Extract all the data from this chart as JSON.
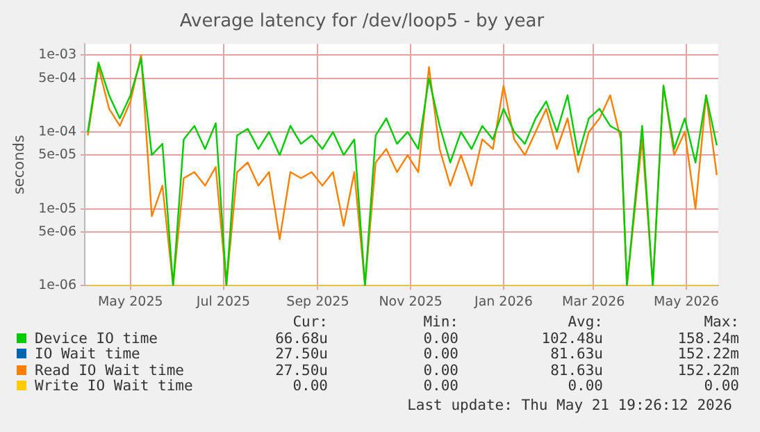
{
  "chart_data": {
    "type": "line",
    "title": "Average latency for /dev/loop5 - by year",
    "ylabel": "seconds",
    "log": "y",
    "grid": true,
    "legend": "bottom",
    "marker": "none",
    "line_style": "solid",
    "xlim": [
      "2025-04-01",
      "2026-05-22"
    ],
    "xticks": [
      {
        "value": "2025-05-01",
        "label": "May 2025"
      },
      {
        "value": "2025-07-01",
        "label": "Jul 2025"
      },
      {
        "value": "2025-09-01",
        "label": "Sep 2025"
      },
      {
        "value": "2025-11-01",
        "label": "Nov 2025"
      },
      {
        "value": "2026-01-01",
        "label": "Jan 2026"
      },
      {
        "value": "2026-03-01",
        "label": "Mar 2026"
      },
      {
        "value": "2026-05-01",
        "label": "May 2026"
      }
    ],
    "ylim": [
      1e-06,
      0.0014
    ],
    "yticks": [
      {
        "value": 1e-06,
        "label": "1e-06"
      },
      {
        "value": 5e-06,
        "label": "5e-06"
      },
      {
        "value": 1e-05,
        "label": "1e-05"
      },
      {
        "value": 5e-05,
        "label": "5e-05"
      },
      {
        "value": 0.0001,
        "label": "1e-04"
      },
      {
        "value": 0.0005,
        "label": "5e-04"
      },
      {
        "value": 0.001,
        "label": "1e-03"
      }
    ],
    "x": [
      "2025-04-03",
      "2025-04-10",
      "2025-04-17",
      "2025-04-24",
      "2025-05-01",
      "2025-05-08",
      "2025-05-15",
      "2025-05-22",
      "2025-05-29",
      "2025-06-05",
      "2025-06-12",
      "2025-06-19",
      "2025-06-26",
      "2025-07-03",
      "2025-07-10",
      "2025-07-17",
      "2025-07-24",
      "2025-07-31",
      "2025-08-07",
      "2025-08-14",
      "2025-08-21",
      "2025-08-28",
      "2025-09-04",
      "2025-09-11",
      "2025-09-18",
      "2025-09-25",
      "2025-10-02",
      "2025-10-09",
      "2025-10-16",
      "2025-10-23",
      "2025-10-30",
      "2025-11-06",
      "2025-11-13",
      "2025-11-20",
      "2025-11-27",
      "2025-12-04",
      "2025-12-11",
      "2025-12-18",
      "2025-12-25",
      "2026-01-01",
      "2026-01-08",
      "2026-01-15",
      "2026-01-22",
      "2026-01-29",
      "2026-02-05",
      "2026-02-12",
      "2026-02-19",
      "2026-02-26",
      "2026-03-05",
      "2026-03-12",
      "2026-03-19",
      "2026-03-23",
      "2026-04-02",
      "2026-04-09",
      "2026-04-16",
      "2026-04-23",
      "2026-04-30",
      "2026-05-07",
      "2026-05-14",
      "2026-05-21"
    ],
    "series": [
      {
        "name": "Device IO time",
        "color": "#00cc00",
        "values": [
          0.0001,
          0.0008,
          0.0003,
          0.00015,
          0.0003,
          0.0009,
          5e-05,
          7e-05,
          1e-06,
          8e-05,
          0.00012,
          6e-05,
          0.00013,
          1e-06,
          9e-05,
          0.00011,
          6e-05,
          0.0001,
          5e-05,
          0.00012,
          7e-05,
          9e-05,
          6e-05,
          0.0001,
          5e-05,
          8e-05,
          1e-06,
          9e-05,
          0.00015,
          7e-05,
          0.0001,
          6e-05,
          0.0005,
          0.00012,
          4e-05,
          0.0001,
          6e-05,
          0.00012,
          8e-05,
          0.0002,
          0.0001,
          7e-05,
          0.00015,
          0.00025,
          0.0001,
          0.0003,
          5e-05,
          0.00015,
          0.0002,
          0.00012,
          0.0001,
          1e-06,
          0.00012,
          1e-06,
          0.0004,
          6e-05,
          0.00015,
          4e-05,
          0.0003,
          6.7e-05
        ]
      },
      {
        "name": "IO Wait time",
        "color": "#0066b3",
        "values": [
          null,
          null,
          null,
          null,
          null,
          null,
          null,
          null,
          null,
          null,
          null,
          null,
          null,
          null,
          null,
          null,
          null,
          null,
          null,
          null,
          null,
          null,
          null,
          null,
          null,
          null,
          null,
          null,
          null,
          null,
          null,
          null,
          null,
          null,
          null,
          null,
          null,
          null,
          null,
          null,
          null,
          null,
          null,
          null,
          null,
          null,
          null,
          null,
          null,
          null,
          null,
          null,
          null,
          null,
          null,
          null,
          null,
          null,
          null,
          null
        ]
      },
      {
        "name": "Read IO Wait time",
        "color": "#ff8000",
        "values": [
          9e-05,
          0.0007,
          0.0002,
          0.00012,
          0.00025,
          0.001,
          8e-06,
          2e-05,
          1e-06,
          2.5e-05,
          3e-05,
          2e-05,
          3.5e-05,
          1e-06,
          3e-05,
          4e-05,
          2e-05,
          3e-05,
          4e-06,
          3e-05,
          2.5e-05,
          3e-05,
          2e-05,
          3e-05,
          6e-06,
          3e-05,
          1e-06,
          4e-05,
          6e-05,
          3e-05,
          5e-05,
          3e-05,
          0.0007,
          6e-05,
          2e-05,
          5e-05,
          2e-05,
          8e-05,
          6e-05,
          0.0004,
          8e-05,
          5e-05,
          0.0001,
          0.0002,
          6e-05,
          0.00015,
          3e-05,
          0.0001,
          0.00015,
          0.0003,
          8e-05,
          1e-06,
          8e-05,
          1e-06,
          0.0004,
          5e-05,
          0.0001,
          1e-05,
          0.0003,
          2.75e-05
        ]
      },
      {
        "name": "Write IO Wait time",
        "color": "#ffcc00",
        "x": [
          "2025-04-03",
          "2026-05-21"
        ],
        "values": [
          1e-06,
          1e-06
        ]
      }
    ],
    "annotations": [
      "Cur:",
      "Min:",
      "Avg:",
      "Max:",
      "66.68u",
      "0.00",
      "102.48u",
      "158.24m",
      "27.50u",
      "0.00",
      "81.63u",
      "152.22m",
      "27.50u",
      "0.00",
      "81.63u",
      "152.22m",
      "0.00",
      "0.00",
      "0.00",
      "0.00",
      "Last update: Thu May 21 19:26:12 2026"
    ]
  }
}
